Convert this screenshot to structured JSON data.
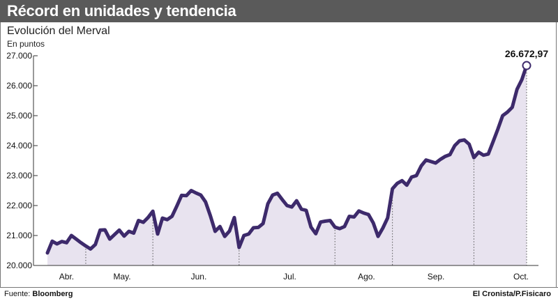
{
  "title": "Récord en unidades y tendencia",
  "subtitle": "Evolución del Merval",
  "unit": "En puntos",
  "source_label": "Fuente:",
  "source_name": "Bloomberg",
  "credit": "El Cronista/P.Fisicaro",
  "last_value_label": "26.672,97",
  "colors": {
    "line": "#3d2a6b",
    "area": "#e8e3ef",
    "title_bg": "#5a5a5a",
    "grid": "#555555"
  },
  "chart_data": {
    "type": "area",
    "title": "Evolución del Merval",
    "ylabel": "En puntos",
    "ylim": [
      20000,
      27000
    ],
    "yticks": [
      20000,
      21000,
      22000,
      23000,
      24000,
      25000,
      26000,
      27000
    ],
    "ytick_labels": [
      "20.000",
      "21.000",
      "22.000",
      "23.000",
      "24.000",
      "25.000",
      "26.000",
      "27.000"
    ],
    "month_labels": [
      "Abr.",
      "May.",
      "Jun.",
      "Jul.",
      "Ago.",
      "Sep.",
      "Oct."
    ],
    "grid": "dotted vertical month separators",
    "series": [
      {
        "values": [
          20420,
          20810,
          20720,
          20800,
          20760,
          21000,
          20880,
          20760,
          20650,
          20550,
          20700,
          21180,
          21190,
          20880,
          21030,
          21180,
          20980,
          21140,
          21080,
          21500,
          21440,
          21600,
          21810,
          21050,
          21580,
          21530,
          21640,
          21980,
          22340,
          22330,
          22500,
          22420,
          22350,
          22120,
          21660,
          21140,
          21300,
          20970,
          21150,
          21600,
          20600,
          21000,
          21050,
          21260,
          21270,
          21400,
          22060,
          22350,
          22410,
          22200,
          22000,
          21950,
          22160,
          21880,
          21840,
          21280,
          21060,
          21450,
          21480,
          21500,
          21280,
          21230,
          21300,
          21640,
          21620,
          21820,
          21750,
          21700,
          21420,
          20970,
          21250,
          21590,
          22560,
          22740,
          22830,
          22680,
          22950,
          23000,
          23320,
          23520,
          23470,
          23420,
          23540,
          23640,
          23700,
          24000,
          24160,
          24190,
          24050,
          23600,
          23780,
          23680,
          23720,
          24130,
          24550,
          25000,
          25120,
          25280,
          25880,
          26200,
          26672.97
        ],
        "last_value": 26672.97
      }
    ]
  }
}
